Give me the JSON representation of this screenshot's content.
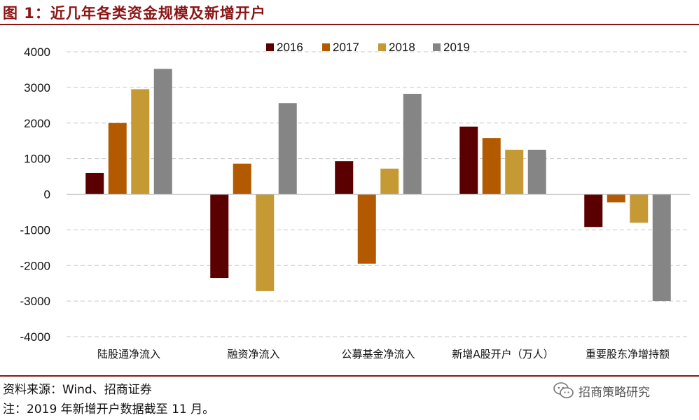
{
  "title": "图 1：近几年各类资金规模及新增开户",
  "source_text": "资料来源：Wind、招商证券",
  "note_text": "注：2019 年新增开户数据截至 11 月。",
  "watermark": {
    "text": "招商策略研究",
    "icon": "wechat-icon"
  },
  "colors": {
    "accent": "#8b1515"
  },
  "chart_data": {
    "type": "bar",
    "categories": [
      "陆股通净流入",
      "融资净流入",
      "公募基金净流入",
      "新增A股开户（万人）",
      "重要股东净增持额"
    ],
    "series": [
      {
        "name": "2016",
        "color": "#5a0000",
        "values": [
          600,
          -2350,
          930,
          1900,
          -920
        ]
      },
      {
        "name": "2017",
        "color": "#b35a00",
        "values": [
          2000,
          860,
          -1950,
          1580,
          -230
        ]
      },
      {
        "name": "2018",
        "color": "#c59a35",
        "values": [
          2950,
          -2720,
          720,
          1250,
          -800
        ]
      },
      {
        "name": "2019",
        "color": "#858585",
        "values": [
          3520,
          2560,
          2820,
          1250,
          -3000
        ]
      }
    ],
    "y_ticks": [
      "4000",
      "3000",
      "2000",
      "1000",
      "0",
      "-1000",
      "-2000",
      "-3000",
      "-4000"
    ],
    "ylim": [
      -4000,
      4000
    ],
    "grid": true,
    "legend_position": "top-right"
  }
}
